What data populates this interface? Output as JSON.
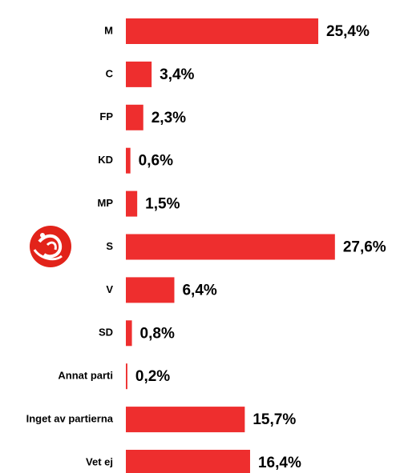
{
  "chart_data": {
    "type": "bar",
    "orientation": "horizontal",
    "categories": [
      "M",
      "C",
      "FP",
      "KD",
      "MP",
      "S",
      "V",
      "SD",
      "Annat parti",
      "Inget av partierna",
      "Vet ej"
    ],
    "values": [
      25.4,
      3.4,
      2.3,
      0.6,
      1.5,
      27.6,
      6.4,
      0.8,
      0.2,
      15.7,
      16.4
    ],
    "value_labels": [
      "25,4%",
      "3,4%",
      "2,3%",
      "0,6%",
      "1,5%",
      "27,6%",
      "6,4%",
      "0,8%",
      "0,2%",
      "15,7%",
      "16,4%"
    ],
    "color": "#ee2e2e"
  }
}
